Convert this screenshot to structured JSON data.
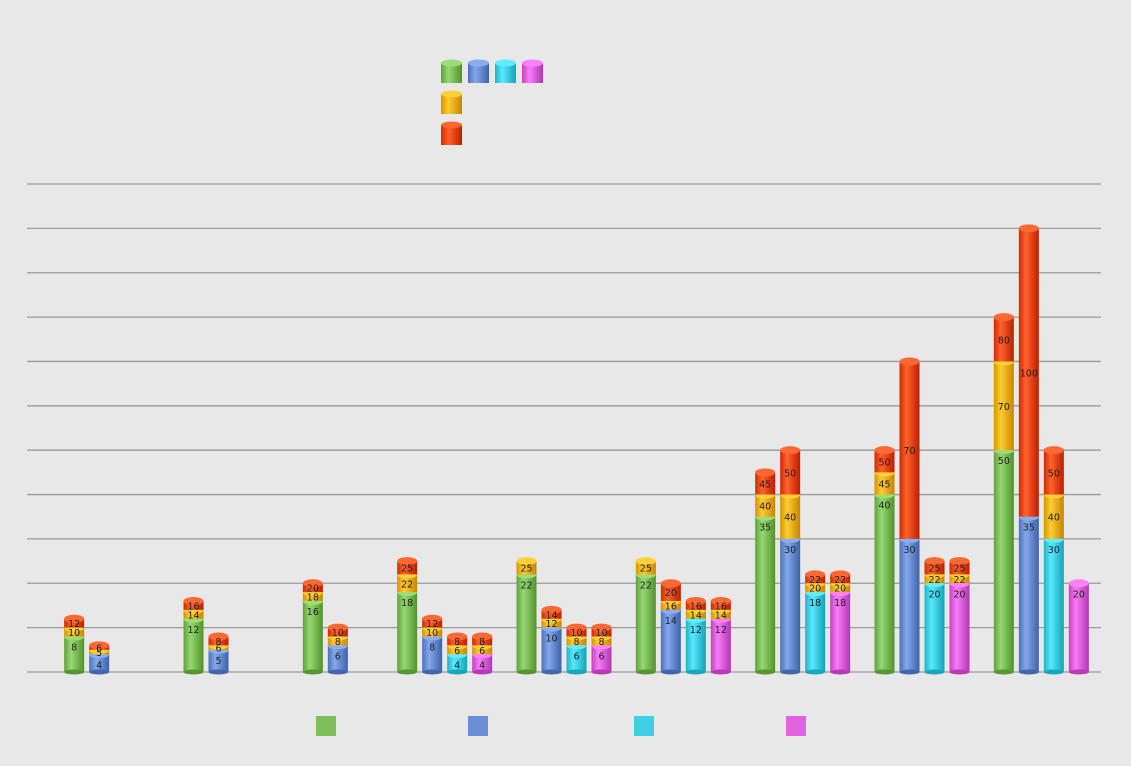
{
  "colors": {
    "background": "#e8e8e8",
    "gridline": "#9a9a9a",
    "green": "#7fbf5a",
    "blue": "#6b8fd4",
    "cyan": "#3fd0e6",
    "magenta": "#df62df",
    "yellow": "#f4b21a",
    "red": "#ea4a14"
  },
  "chart_data": {
    "type": "bar",
    "stacked": true,
    "style": "3d-cylinder",
    "ylim": [
      0,
      110
    ],
    "grid": true,
    "y_gridlines": [
      0,
      10,
      20,
      30,
      40,
      50,
      60,
      70,
      80,
      90,
      100,
      110
    ],
    "categories": [
      "",
      "",
      "",
      "",
      "",
      "",
      "",
      "",
      ""
    ],
    "legend_bottom": [
      {
        "color_key": "green"
      },
      {
        "color_key": "blue"
      },
      {
        "color_key": "cyan"
      },
      {
        "color_key": "magenta"
      }
    ],
    "legend_top": [
      {
        "color_keys": [
          "green",
          "blue",
          "cyan",
          "magenta"
        ]
      },
      {
        "color_keys": [
          "yellow"
        ]
      },
      {
        "color_keys": [
          "red"
        ]
      }
    ],
    "groups": [
      {
        "bars": [
          {
            "base": "green",
            "segments": [
              8,
              10,
              12
            ]
          },
          {
            "base": "blue",
            "segments": [
              4,
              5,
              6
            ]
          }
        ]
      },
      {
        "bars": [
          {
            "base": "green",
            "segments": [
              12,
              14,
              16
            ]
          },
          {
            "base": "blue",
            "segments": [
              5,
              6,
              8
            ]
          }
        ]
      },
      {
        "bars": [
          {
            "base": "green",
            "segments": [
              16,
              18,
              20
            ]
          },
          {
            "base": "blue",
            "segments": [
              6,
              8,
              10
            ]
          }
        ]
      },
      {
        "bars": [
          {
            "base": "green",
            "segments": [
              18,
              22,
              25
            ]
          },
          {
            "base": "blue",
            "segments": [
              8,
              10,
              12
            ]
          },
          {
            "base": "cyan",
            "segments": [
              4,
              6,
              8
            ]
          },
          {
            "base": "magenta",
            "segments": [
              4,
              6,
              8
            ]
          }
        ]
      },
      {
        "bars": [
          {
            "base": "green",
            "segments": [
              22,
              25
            ]
          },
          {
            "base": "blue",
            "segments": [
              10,
              12,
              14
            ]
          },
          {
            "base": "cyan",
            "segments": [
              6,
              8,
              10
            ]
          },
          {
            "base": "magenta",
            "segments": [
              6,
              8,
              10
            ]
          }
        ]
      },
      {
        "bars": [
          {
            "base": "green",
            "segments": [
              22,
              25
            ]
          },
          {
            "base": "blue",
            "segments": [
              14,
              16,
              20
            ]
          },
          {
            "base": "cyan",
            "segments": [
              12,
              14,
              16
            ]
          },
          {
            "base": "magenta",
            "segments": [
              12,
              14,
              16
            ]
          }
        ]
      },
      {
        "bars": [
          {
            "base": "green",
            "segments": [
              35,
              40,
              45
            ]
          },
          {
            "base": "blue",
            "segments": [
              30,
              40,
              50
            ]
          },
          {
            "base": "cyan",
            "segments": [
              18,
              20,
              22
            ]
          },
          {
            "base": "magenta",
            "segments": [
              18,
              20,
              22
            ]
          }
        ]
      },
      {
        "bars": [
          {
            "base": "green",
            "segments": [
              40,
              45,
              50
            ]
          },
          {
            "base": "blue",
            "segments": [
              30,
              70
            ]
          },
          {
            "base": "cyan",
            "segments": [
              20,
              22,
              25
            ]
          },
          {
            "base": "magenta",
            "segments": [
              20,
              22,
              25
            ]
          }
        ]
      },
      {
        "bars": [
          {
            "base": "green",
            "segments": [
              50,
              70,
              80
            ]
          },
          {
            "base": "blue",
            "segments": [
              35,
              100
            ]
          },
          {
            "base": "cyan",
            "segments": [
              30,
              40,
              50
            ]
          },
          {
            "base": "magenta",
            "segments": [
              20
            ]
          }
        ]
      }
    ]
  }
}
